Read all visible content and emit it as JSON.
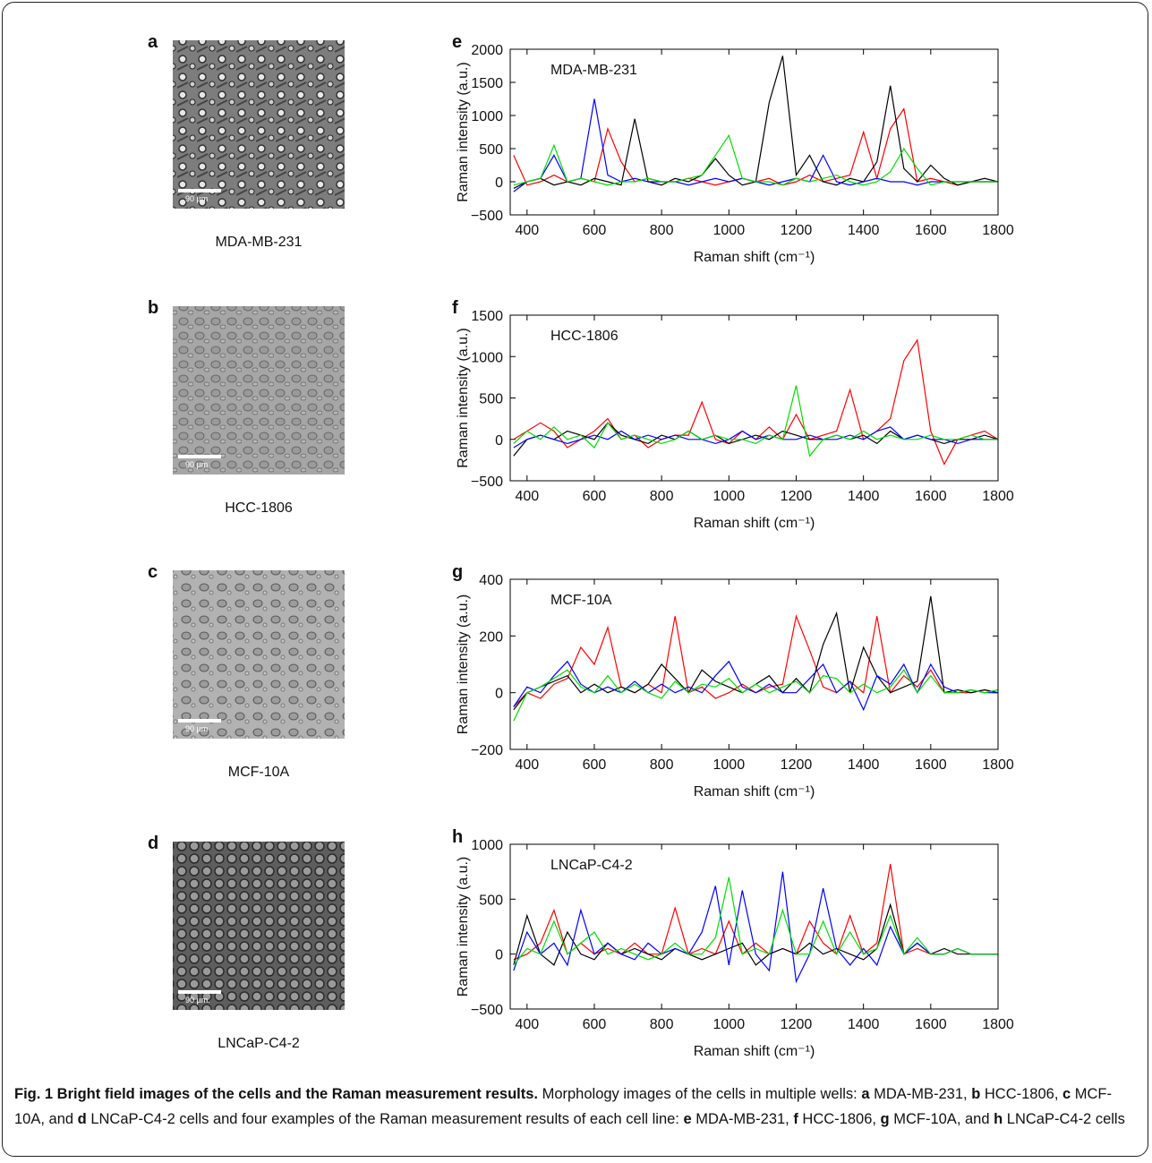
{
  "images": [
    {
      "panel": "a",
      "caption": "MDA-MB-231",
      "scale_bar": "90 µm"
    },
    {
      "panel": "b",
      "caption": "HCC-1806",
      "scale_bar": "90 µm"
    },
    {
      "panel": "c",
      "caption": "MCF-10A",
      "scale_bar": "90 µm"
    },
    {
      "panel": "d",
      "caption": "LNCaP-C4-2",
      "scale_bar": "90 µm."
    }
  ],
  "chart_data": [
    {
      "type": "line",
      "panel": "e",
      "label": "MDA-MB-231",
      "xlabel": "Raman shift (cm⁻¹)",
      "ylabel": "Raman intensity (a.u.)",
      "xlim": [
        350,
        1800
      ],
      "xticks": [
        400,
        600,
        800,
        1000,
        1200,
        1400,
        1600,
        1800
      ],
      "ylim": [
        -500,
        2000
      ],
      "yticks": [
        {
          "value": -500,
          "label": "−500"
        },
        0,
        500,
        1000,
        1500,
        2000
      ],
      "x": [
        360,
        400,
        440,
        480,
        520,
        560,
        600,
        640,
        680,
        720,
        760,
        800,
        840,
        880,
        920,
        960,
        1000,
        1040,
        1080,
        1120,
        1160,
        1200,
        1240,
        1280,
        1320,
        1360,
        1400,
        1440,
        1480,
        1520,
        1560,
        1600,
        1640,
        1680,
        1720,
        1760,
        1800
      ],
      "series": [
        {
          "color": "#ff0000",
          "values": [
            400,
            -50,
            0,
            100,
            0,
            50,
            0,
            800,
            300,
            0,
            50,
            0,
            0,
            50,
            0,
            -50,
            0,
            50,
            0,
            50,
            -50,
            0,
            100,
            0,
            50,
            100,
            750,
            50,
            800,
            1100,
            0,
            50,
            0,
            -50,
            0,
            0,
            0
          ]
        },
        {
          "color": "#000000",
          "values": [
            -100,
            0,
            50,
            -50,
            0,
            -50,
            50,
            0,
            -50,
            950,
            0,
            -50,
            50,
            0,
            100,
            350,
            100,
            -50,
            0,
            1200,
            1900,
            100,
            400,
            0,
            -50,
            50,
            0,
            300,
            1450,
            200,
            0,
            250,
            50,
            -50,
            0,
            50,
            0
          ]
        },
        {
          "color": "#0000ff",
          "values": [
            -150,
            0,
            50,
            400,
            0,
            50,
            1250,
            100,
            0,
            50,
            0,
            0,
            0,
            -50,
            0,
            50,
            0,
            50,
            0,
            -50,
            0,
            50,
            0,
            400,
            0,
            -50,
            0,
            50,
            0,
            0,
            -50,
            0,
            0,
            0,
            0,
            0,
            0
          ]
        },
        {
          "color": "#00dd00",
          "values": [
            -50,
            0,
            50,
            550,
            0,
            50,
            0,
            -50,
            0,
            0,
            50,
            0,
            0,
            50,
            100,
            400,
            700,
            50,
            0,
            0,
            -50,
            50,
            0,
            50,
            100,
            0,
            -50,
            0,
            150,
            500,
            200,
            -50,
            0,
            0,
            0,
            0,
            0
          ]
        }
      ]
    },
    {
      "type": "line",
      "panel": "f",
      "label": "HCC-1806",
      "xlabel": "Raman shift (cm⁻¹)",
      "ylabel": "Raman intensity (a.u.)",
      "xlim": [
        350,
        1800
      ],
      "xticks": [
        400,
        600,
        800,
        1000,
        1200,
        1400,
        1600,
        1800
      ],
      "ylim": [
        -500,
        1500
      ],
      "yticks": [
        {
          "value": -500,
          "label": "−500"
        },
        0,
        500,
        1000,
        1500
      ],
      "x": [
        360,
        400,
        440,
        480,
        520,
        560,
        600,
        640,
        680,
        720,
        760,
        800,
        840,
        880,
        920,
        960,
        1000,
        1040,
        1080,
        1120,
        1160,
        1200,
        1240,
        1280,
        1320,
        1360,
        1400,
        1440,
        1480,
        1520,
        1560,
        1600,
        1640,
        1680,
        1720,
        1760,
        1800
      ],
      "series": [
        {
          "color": "#ff0000",
          "values": [
            0,
            100,
            200,
            100,
            -100,
            0,
            100,
            250,
            0,
            50,
            -100,
            0,
            50,
            50,
            450,
            0,
            -50,
            100,
            0,
            150,
            0,
            300,
            0,
            50,
            100,
            600,
            0,
            100,
            250,
            950,
            1200,
            100,
            -300,
            0,
            50,
            100,
            0
          ]
        },
        {
          "color": "#000000",
          "values": [
            -200,
            0,
            50,
            0,
            100,
            50,
            0,
            200,
            50,
            0,
            -50,
            50,
            0,
            100,
            0,
            50,
            -50,
            0,
            50,
            0,
            100,
            50,
            0,
            0,
            50,
            0,
            50,
            -50,
            100,
            0,
            50,
            0,
            -50,
            0,
            0,
            50,
            0
          ]
        },
        {
          "color": "#0000ff",
          "values": [
            -100,
            0,
            50,
            0,
            -50,
            0,
            50,
            0,
            100,
            0,
            50,
            0,
            50,
            0,
            0,
            -50,
            0,
            100,
            0,
            50,
            0,
            0,
            50,
            0,
            0,
            50,
            0,
            100,
            150,
            0,
            50,
            0,
            0,
            -50,
            0,
            0,
            0
          ]
        },
        {
          "color": "#00dd00",
          "values": [
            -50,
            100,
            0,
            150,
            0,
            50,
            -100,
            200,
            0,
            50,
            0,
            -50,
            0,
            100,
            0,
            50,
            0,
            0,
            -50,
            50,
            0,
            650,
            -200,
            0,
            50,
            0,
            100,
            0,
            50,
            0,
            0,
            50,
            0,
            0,
            50,
            0,
            0
          ]
        }
      ]
    },
    {
      "type": "line",
      "panel": "g",
      "label": "MCF-10A",
      "xlabel": "Raman shift (cm⁻¹)",
      "ylabel": "Raman intensity (a.u.)",
      "xlim": [
        350,
        1800
      ],
      "xticks": [
        400,
        600,
        800,
        1000,
        1200,
        1400,
        1600,
        1800
      ],
      "ylim": [
        -200,
        400
      ],
      "yticks": [
        {
          "value": -200,
          "label": "−200"
        },
        0,
        200,
        400
      ],
      "x": [
        360,
        400,
        440,
        480,
        520,
        560,
        600,
        640,
        680,
        720,
        760,
        800,
        840,
        880,
        920,
        960,
        1000,
        1040,
        1080,
        1120,
        1160,
        1200,
        1240,
        1280,
        1320,
        1360,
        1400,
        1440,
        1480,
        1520,
        1560,
        1600,
        1640,
        1680,
        1720,
        1760,
        1800
      ],
      "series": [
        {
          "color": "#ff0000",
          "values": [
            -50,
            0,
            -20,
            30,
            50,
            160,
            100,
            230,
            20,
            0,
            30,
            0,
            270,
            0,
            20,
            -20,
            0,
            30,
            0,
            20,
            30,
            270,
            150,
            20,
            0,
            40,
            0,
            270,
            0,
            60,
            20,
            80,
            0,
            0,
            0,
            10,
            0
          ]
        },
        {
          "color": "#000000",
          "values": [
            -60,
            0,
            20,
            40,
            60,
            0,
            30,
            0,
            20,
            0,
            30,
            100,
            50,
            0,
            80,
            40,
            20,
            0,
            30,
            60,
            0,
            50,
            0,
            170,
            280,
            0,
            160,
            60,
            0,
            20,
            40,
            340,
            0,
            10,
            0,
            10,
            0
          ]
        },
        {
          "color": "#0000ff",
          "values": [
            -50,
            20,
            0,
            60,
            110,
            30,
            0,
            20,
            0,
            40,
            0,
            30,
            0,
            20,
            0,
            60,
            110,
            20,
            0,
            30,
            0,
            0,
            50,
            100,
            0,
            40,
            -60,
            60,
            30,
            100,
            0,
            100,
            20,
            0,
            10,
            0,
            0
          ]
        },
        {
          "color": "#00dd00",
          "values": [
            -100,
            0,
            20,
            50,
            80,
            20,
            0,
            60,
            0,
            30,
            0,
            -20,
            40,
            0,
            30,
            20,
            50,
            0,
            30,
            0,
            20,
            40,
            0,
            60,
            50,
            0,
            30,
            0,
            20,
            80,
            0,
            60,
            0,
            0,
            10,
            0,
            10
          ]
        }
      ]
    },
    {
      "type": "line",
      "panel": "h",
      "label": "LNCaP-C4-2",
      "xlabel": "Raman shift (cm⁻¹)",
      "ylabel": "Raman intensity (a.u.)",
      "xlim": [
        350,
        1800
      ],
      "xticks": [
        400,
        600,
        800,
        1000,
        1200,
        1400,
        1600,
        1800
      ],
      "ylim": [
        -500,
        1000
      ],
      "yticks": [
        {
          "value": -500,
          "label": "−500"
        },
        0,
        500,
        1000
      ],
      "x": [
        360,
        400,
        440,
        480,
        520,
        560,
        600,
        640,
        680,
        720,
        760,
        800,
        840,
        880,
        920,
        960,
        1000,
        1040,
        1080,
        1120,
        1160,
        1200,
        1240,
        1280,
        1320,
        1360,
        1400,
        1440,
        1480,
        1520,
        1560,
        1600,
        1640,
        1680,
        1720,
        1760,
        1800
      ],
      "series": [
        {
          "color": "#ff0000",
          "values": [
            -50,
            0,
            100,
            400,
            0,
            100,
            0,
            50,
            0,
            100,
            0,
            0,
            420,
            0,
            50,
            0,
            300,
            0,
            100,
            0,
            50,
            0,
            300,
            100,
            0,
            350,
            0,
            100,
            820,
            0,
            50,
            0,
            0,
            50,
            0,
            0,
            0
          ]
        },
        {
          "color": "#000000",
          "values": [
            -100,
            350,
            0,
            -100,
            200,
            0,
            -50,
            100,
            0,
            50,
            0,
            -50,
            50,
            0,
            -50,
            0,
            50,
            100,
            -100,
            0,
            50,
            0,
            100,
            0,
            50,
            0,
            -50,
            50,
            450,
            0,
            100,
            0,
            50,
            0,
            0,
            0,
            0
          ]
        },
        {
          "color": "#0000ff",
          "values": [
            -150,
            200,
            0,
            100,
            -100,
            400,
            0,
            100,
            0,
            -50,
            100,
            0,
            50,
            0,
            200,
            620,
            -100,
            580,
            0,
            -150,
            750,
            -250,
            0,
            600,
            50,
            -100,
            50,
            -100,
            250,
            0,
            100,
            0,
            0,
            50,
            0,
            0,
            0
          ]
        },
        {
          "color": "#00dd00",
          "values": [
            -100,
            50,
            0,
            300,
            0,
            100,
            200,
            0,
            50,
            0,
            -50,
            0,
            100,
            0,
            0,
            150,
            700,
            0,
            50,
            0,
            400,
            0,
            0,
            300,
            0,
            200,
            0,
            50,
            350,
            0,
            150,
            0,
            0,
            50,
            0,
            0,
            0
          ]
        }
      ]
    }
  ],
  "caption": {
    "title": "Fig. 1 Bright field images of the cells and the Raman measurement results.",
    "segments": [
      " Morphology images of the cells in multiple wells: ",
      "a",
      " MDA-MB-231, ",
      "b",
      " HCC-1806, ",
      "c",
      " MCF-10A, and ",
      "d",
      " LNCaP-C4-2 cells and four examples of the Raman measurement results of each cell line: ",
      "e",
      " MDA-MB-231, ",
      "f",
      " HCC-1806, ",
      "g",
      " MCF-10A, and ",
      "h",
      " LNCaP-C4-2 cells"
    ]
  }
}
